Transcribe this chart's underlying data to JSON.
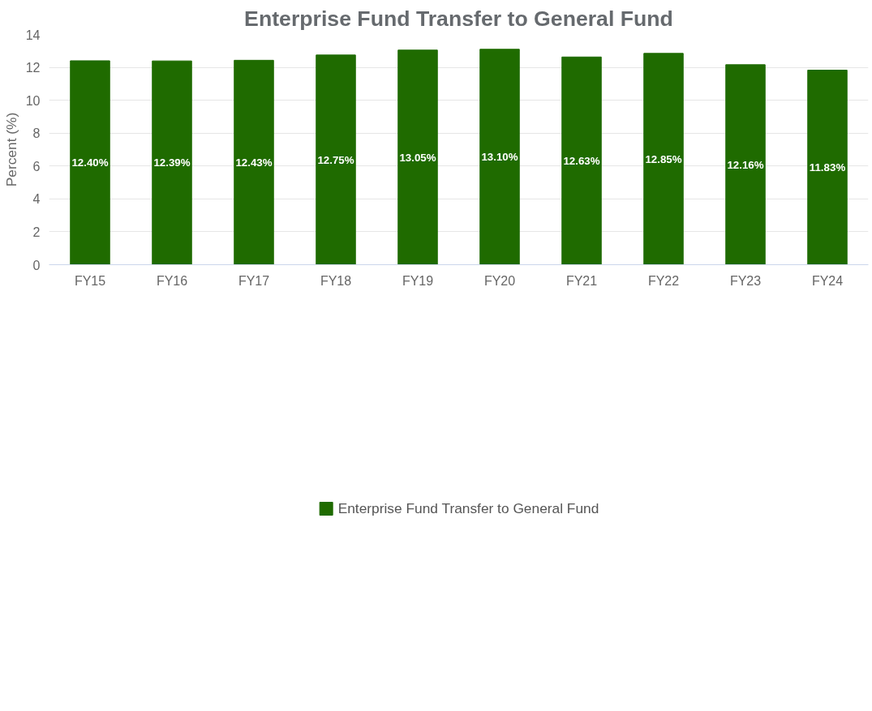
{
  "chart_data": {
    "type": "bar",
    "title": "Enterprise Fund Transfer to General Fund",
    "ylabel": "Percent (%)",
    "categories": [
      "FY15",
      "FY16",
      "FY17",
      "FY18",
      "FY19",
      "FY20",
      "FY21",
      "FY22",
      "FY23",
      "FY24"
    ],
    "series": [
      {
        "name": "Enterprise Fund Transfer to General Fund",
        "color": "#1f6b00",
        "values": [
          12.4,
          12.39,
          12.43,
          12.75,
          13.05,
          13.1,
          12.63,
          12.85,
          12.16,
          11.83
        ],
        "value_labels": [
          "12.40%",
          "12.39%",
          "12.43%",
          "12.75%",
          "13.05%",
          "13.10%",
          "12.63%",
          "12.85%",
          "12.16%",
          "11.83%"
        ]
      }
    ],
    "ylim": [
      0,
      14
    ],
    "yticks": [
      0,
      2,
      4,
      6,
      8,
      10,
      12,
      14
    ],
    "grid": "y",
    "legend": "bottom"
  }
}
